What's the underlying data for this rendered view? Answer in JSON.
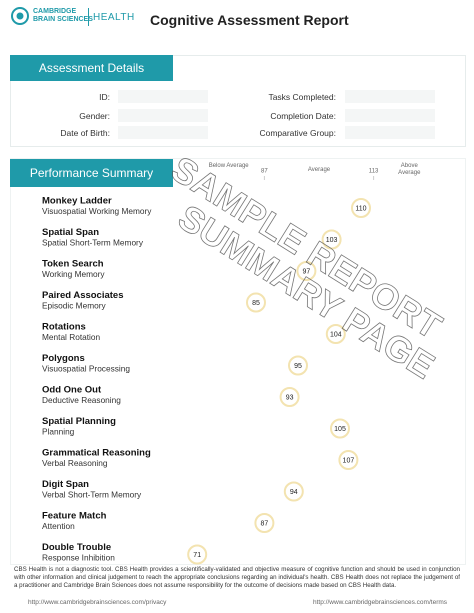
{
  "header": {
    "logo_line1": "CAMBRIDGE",
    "logo_line2": "BRAIN SCIENCES",
    "brand": "HEALTH",
    "title": "Cognitive Assessment Report"
  },
  "assessment_details": {
    "heading": "Assessment Details",
    "left_fields": [
      "ID:",
      "Gender:",
      "Date of Birth:"
    ],
    "right_fields": [
      "Tasks Completed:",
      "Completion Date:",
      "Comparative Group:"
    ]
  },
  "chart_data": {
    "type": "dot_scale",
    "title": "Performance Summary",
    "zone_labels": [
      "Below Average",
      "Average",
      "Above Average"
    ],
    "xlim": [
      70,
      130
    ],
    "xticks": [
      87,
      113
    ],
    "categories": [
      "Monkey Ladder",
      "Spatial Span",
      "Token Search",
      "Paired Associates",
      "Rotations",
      "Polygons",
      "Odd One Out",
      "Spatial Planning",
      "Grammatical Reasoning",
      "Digit Span",
      "Feature Match",
      "Double Trouble"
    ],
    "subtitles": [
      "Visuospatial Working Memory",
      "Spatial Short-Term Memory",
      "Working Memory",
      "Episodic Memory",
      "Mental Rotation",
      "Visuospatial Processing",
      "Deductive Reasoning",
      "Planning",
      "Verbal Reasoning",
      "Verbal Short-Term Memory",
      "Attention",
      "Response Inhibition"
    ],
    "values": [
      110,
      103,
      97,
      85,
      104,
      95,
      93,
      105,
      107,
      94,
      87,
      71
    ]
  },
  "watermark": [
    "SAMPLE REPORT",
    "SUMMARY PAGE"
  ],
  "footer": {
    "disclaimer": "CBS Health is not a diagnostic tool. CBS Health provides a scientifically-validated and objective measure of cognitive function and should be used in conjunction with other information and clinical judgement to reach the appropriate conclusions regarding an individual's health. CBS Health does not replace the judgement of a practitioner and Cambridge Brain Sciences does not assume responsibility for the outcome of decisions made based on CBS Health data.",
    "privacy_url": "http://www.cambridgebrainsciences.com/privacy",
    "terms_url": "http://www.cambridgebrainsciences.com/terms"
  }
}
